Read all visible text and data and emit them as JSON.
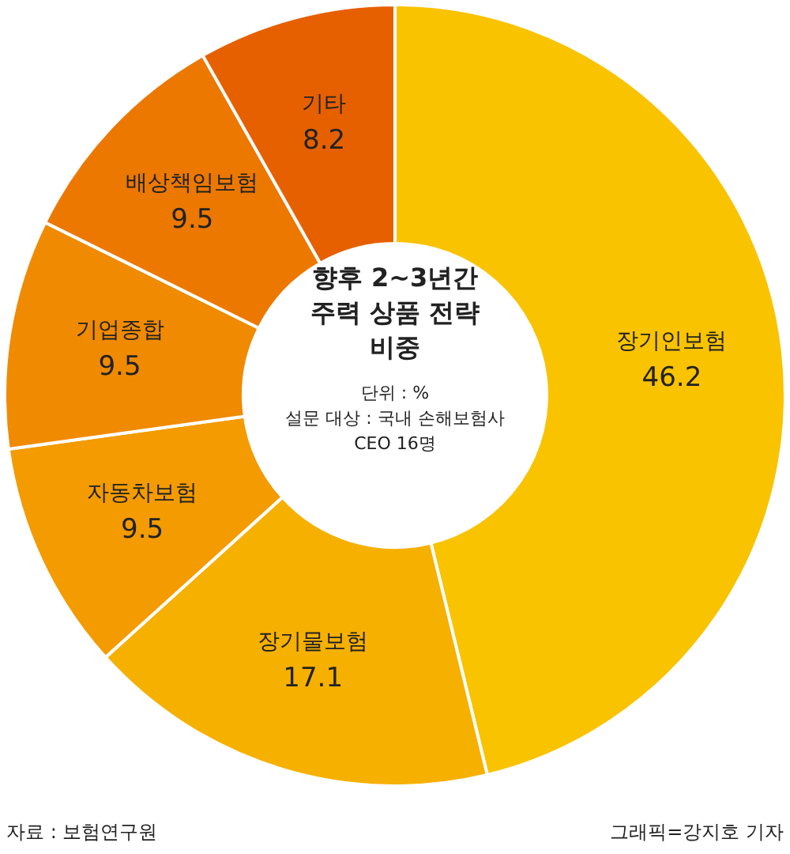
{
  "chart_data": {
    "type": "donut",
    "title": "향후 2~3년간 주력 상품 전략 비중",
    "subtitle": "단위 : %",
    "categories": [
      "장기인보험",
      "장기물보험",
      "자동차보험",
      "기업종합",
      "배상책임보험",
      "기타"
    ],
    "values": [
      46.2,
      17.1,
      9.5,
      9.5,
      9.5,
      8.2
    ],
    "colors": [
      "#f9c300",
      "#f6b000",
      "#f39b00",
      "#f08a00",
      "#ec7800",
      "#e66000"
    ],
    "data_labels": true,
    "annotations": [
      "설문 대상 : 국내 손해보험사 CEO 16명",
      "자료 : 보험연구원",
      "그래픽=강지호 기자"
    ]
  }
}
